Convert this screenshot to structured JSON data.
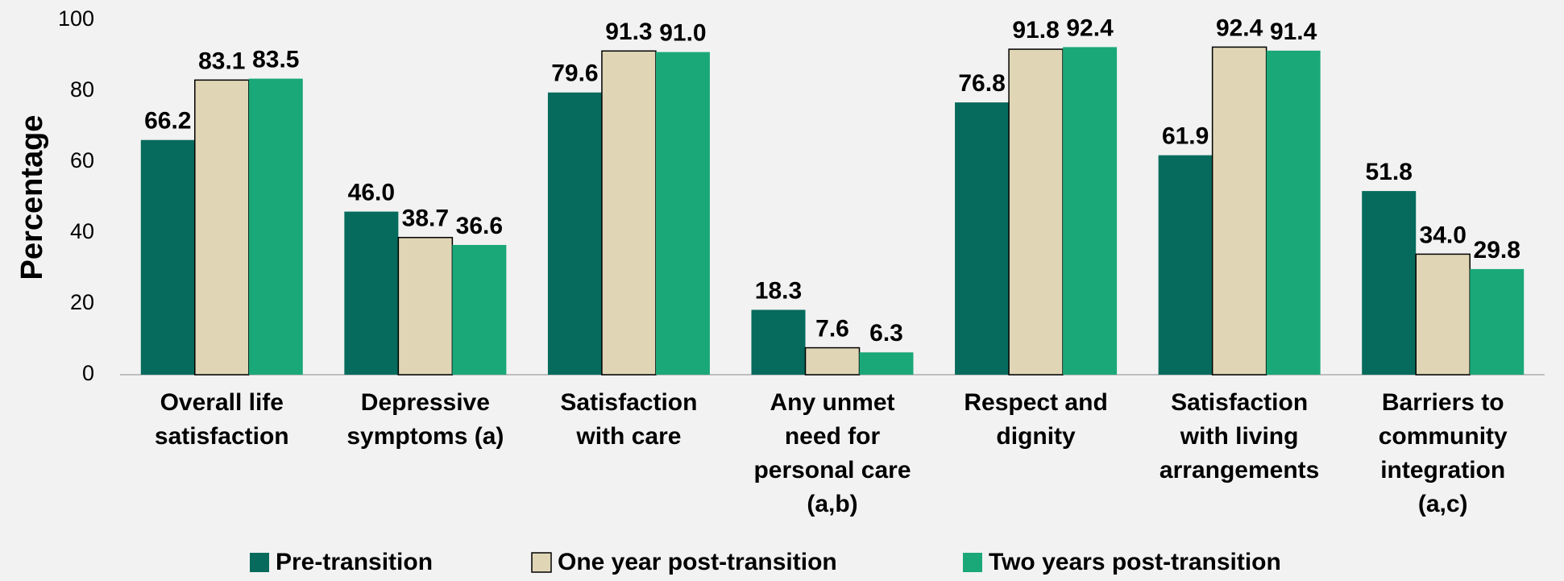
{
  "chart_data": {
    "type": "bar",
    "y_label": "Percentage",
    "categories": [
      [
        "Overall life",
        "satisfaction"
      ],
      [
        "Depressive",
        "symptoms (a)"
      ],
      [
        "Satisfaction",
        "with care"
      ],
      [
        "Any unmet",
        "need for",
        "personal care",
        "(a,b)"
      ],
      [
        "Respect and",
        "dignity"
      ],
      [
        "Satisfaction",
        "with living",
        "arrangements"
      ],
      [
        "Barriers to",
        "community",
        "integration",
        "(a,c)"
      ]
    ],
    "series": [
      {
        "name": "Pre-transition",
        "color": "#066b5c",
        "values": [
          66.2,
          46.0,
          79.6,
          18.3,
          76.8,
          61.9,
          51.8
        ],
        "value_labels": [
          "66.2",
          "46.0",
          "79.6",
          "18.3",
          "76.8",
          "61.9",
          "51.8"
        ]
      },
      {
        "name": "One year post-transition",
        "color": "#e0d6b6",
        "values": [
          83.1,
          38.7,
          91.3,
          7.6,
          91.8,
          92.4,
          34.0
        ],
        "value_labels": [
          "83.1",
          "38.7",
          "91.3",
          "7.6",
          "91.8",
          "92.4",
          "34.0"
        ]
      },
      {
        "name": "Two years post-transition",
        "color": "#1aa878",
        "values": [
          83.5,
          36.6,
          91.0,
          6.3,
          92.4,
          91.4,
          29.8
        ],
        "value_labels": [
          "83.5",
          "36.6",
          "91.0",
          "6.3",
          "92.4",
          "91.4",
          "29.8"
        ]
      }
    ],
    "ylim": [
      0,
      100
    ],
    "yticks": [
      0,
      20,
      40,
      60,
      80,
      100
    ],
    "grid": false,
    "legend": "bottom"
  }
}
